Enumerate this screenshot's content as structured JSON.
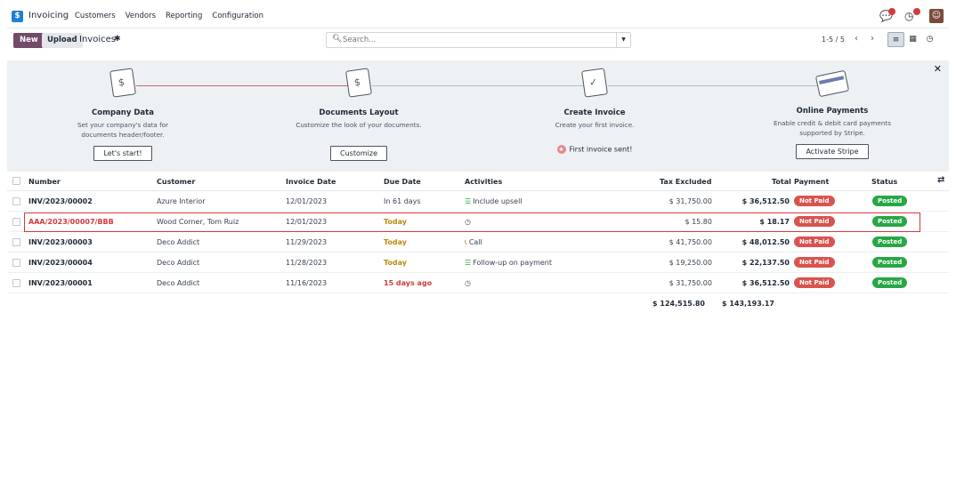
{
  "nav": {
    "app_name": "Invoicing",
    "menu": [
      "Customers",
      "Vendors",
      "Reporting",
      "Configuration"
    ]
  },
  "control": {
    "new_label": "New",
    "upload_label": "Upload",
    "breadcrumb": "Invoices",
    "search_placeholder": "Search...",
    "pager": "1-5 / 5"
  },
  "onboarding": {
    "steps": [
      {
        "title": "Company Data",
        "desc": "Set your company's data for documents header/footer.",
        "button": "Let's start!"
      },
      {
        "title": "Documents Layout",
        "desc": "Customize the look of your documents.",
        "button": "Customize"
      },
      {
        "title": "Create Invoice",
        "desc": "Create your first invoice.",
        "done": "First invoice sent!"
      },
      {
        "title": "Online Payments",
        "desc": "Enable credit & debit card payments supported by Stripe.",
        "button": "Activate Stripe"
      }
    ]
  },
  "table": {
    "headers": [
      "Number",
      "Customer",
      "Invoice Date",
      "Due Date",
      "Activities",
      "Tax Excluded",
      "Total",
      "Payment",
      "Status"
    ],
    "rows": [
      {
        "number": "INV/2023/00002",
        "customer": "Azure Interior",
        "invoice_date": "12/01/2023",
        "due_date": "In 61 days",
        "activity": "Include upsell",
        "activity_icon": "list-icon",
        "tax_excluded": "$ 31,750.00",
        "total": "$ 36,512.50",
        "payment": "Not Paid",
        "status": "Posted"
      },
      {
        "number": "AAA/2023/00007/BBB",
        "customer": "Wood Corner, Tom Ruiz",
        "invoice_date": "12/01/2023",
        "due_date": "Today",
        "activity": "",
        "activity_icon": "clock-icon",
        "tax_excluded": "$ 15.80",
        "total": "$ 18.17",
        "payment": "Not Paid",
        "status": "Posted"
      },
      {
        "number": "INV/2023/00003",
        "customer": "Deco Addict",
        "invoice_date": "11/29/2023",
        "due_date": "Today",
        "activity": "Call",
        "activity_icon": "phone-icon",
        "tax_excluded": "$ 41,750.00",
        "total": "$ 48,012.50",
        "payment": "Not Paid",
        "status": "Posted"
      },
      {
        "number": "INV/2023/00004",
        "customer": "Deco Addict",
        "invoice_date": "11/28/2023",
        "due_date": "Today",
        "activity": "Follow-up on payment",
        "activity_icon": "list-icon",
        "tax_excluded": "$ 19,250.00",
        "total": "$ 22,137.50",
        "payment": "Not Paid",
        "status": "Posted"
      },
      {
        "number": "INV/2023/00001",
        "customer": "Deco Addict",
        "invoice_date": "11/16/2023",
        "due_date": "15 days ago",
        "activity": "",
        "activity_icon": "clock-icon",
        "tax_excluded": "$ 31,750.00",
        "total": "$ 36,512.50",
        "payment": "Not Paid",
        "status": "Posted"
      }
    ],
    "totals": {
      "tax_excluded": "$ 124,515.80",
      "total": "$ 143,193.17"
    }
  }
}
